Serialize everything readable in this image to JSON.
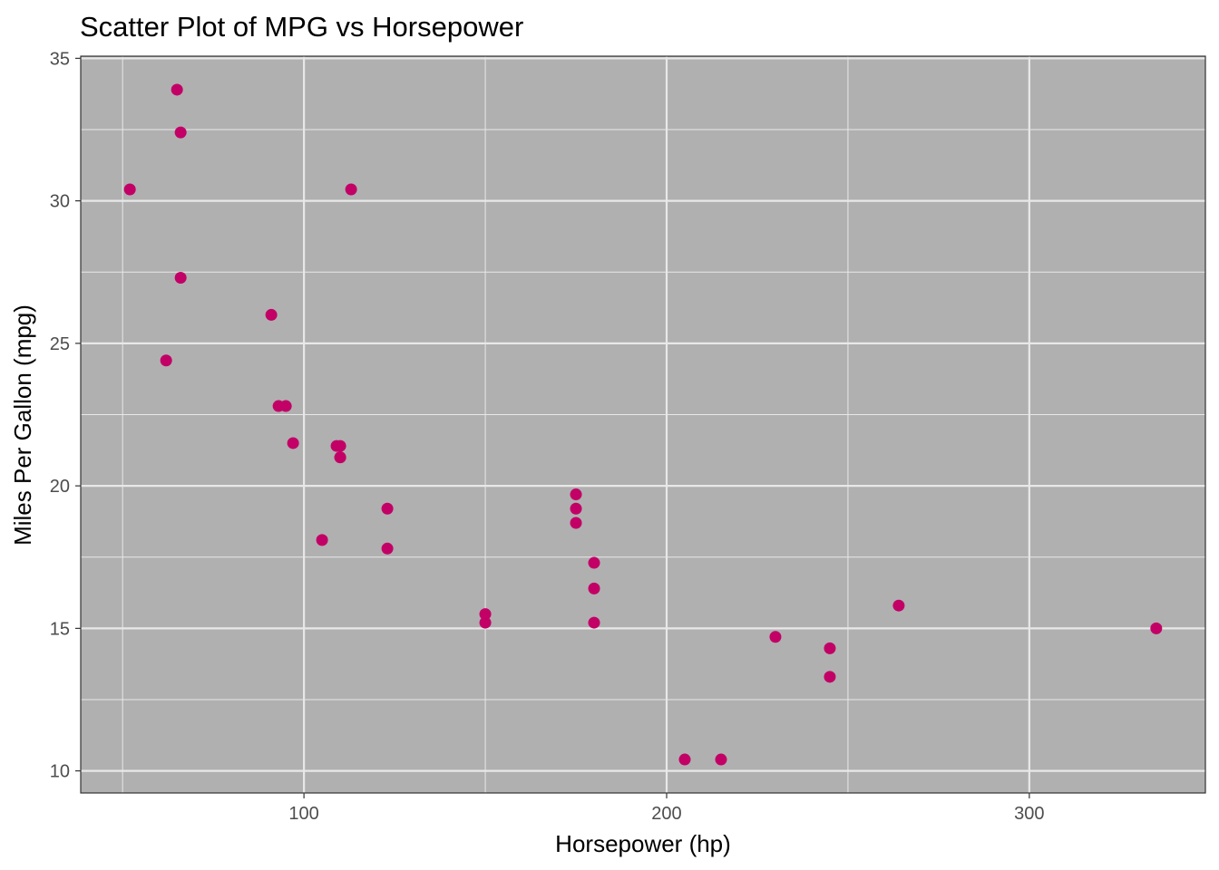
{
  "chart_data": {
    "type": "scatter",
    "title": "Scatter Plot of MPG vs Horsepower",
    "xlabel": "Horsepower (hp)",
    "ylabel": "Miles Per Gallon (mpg)",
    "xlim": [
      38.45,
      348.55
    ],
    "ylim": [
      9.225,
      35.075
    ],
    "x_ticks": [
      100,
      200,
      300
    ],
    "x_tick_labels": [
      "100",
      "200",
      "300"
    ],
    "x_minor_ticks": [
      50,
      150,
      250
    ],
    "y_ticks": [
      10,
      15,
      20,
      25,
      30,
      35
    ],
    "y_tick_labels": [
      "10",
      "15",
      "20",
      "25",
      "30",
      "35"
    ],
    "y_minor_ticks": [
      12.5,
      17.5,
      22.5,
      27.5,
      32.5
    ],
    "grid": true,
    "point_color": "#C20066",
    "panel_color": "#B0B0B0",
    "grid_color": "#E8E8E8",
    "points": [
      {
        "x": 110,
        "y": 21.0
      },
      {
        "x": 110,
        "y": 21.0
      },
      {
        "x": 93,
        "y": 22.8
      },
      {
        "x": 110,
        "y": 21.4
      },
      {
        "x": 175,
        "y": 18.7
      },
      {
        "x": 105,
        "y": 18.1
      },
      {
        "x": 245,
        "y": 14.3
      },
      {
        "x": 62,
        "y": 24.4
      },
      {
        "x": 95,
        "y": 22.8
      },
      {
        "x": 123,
        "y": 19.2
      },
      {
        "x": 123,
        "y": 17.8
      },
      {
        "x": 180,
        "y": 16.4
      },
      {
        "x": 180,
        "y": 17.3
      },
      {
        "x": 180,
        "y": 15.2
      },
      {
        "x": 205,
        "y": 10.4
      },
      {
        "x": 215,
        "y": 10.4
      },
      {
        "x": 230,
        "y": 14.7
      },
      {
        "x": 66,
        "y": 32.4
      },
      {
        "x": 52,
        "y": 30.4
      },
      {
        "x": 65,
        "y": 33.9
      },
      {
        "x": 97,
        "y": 21.5
      },
      {
        "x": 150,
        "y": 15.5
      },
      {
        "x": 150,
        "y": 15.2
      },
      {
        "x": 245,
        "y": 13.3
      },
      {
        "x": 175,
        "y": 19.2
      },
      {
        "x": 66,
        "y": 27.3
      },
      {
        "x": 91,
        "y": 26.0
      },
      {
        "x": 113,
        "y": 30.4
      },
      {
        "x": 264,
        "y": 15.8
      },
      {
        "x": 175,
        "y": 19.7
      },
      {
        "x": 335,
        "y": 15.0
      },
      {
        "x": 109,
        "y": 21.4
      }
    ]
  }
}
